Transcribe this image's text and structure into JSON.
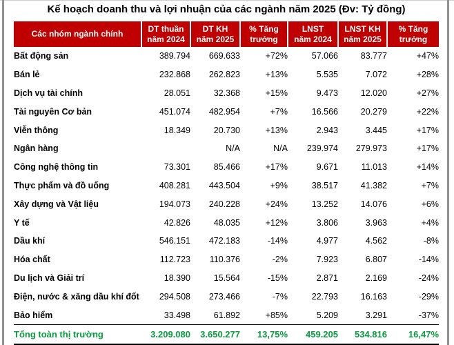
{
  "title": "Kế hoạch doanh thu và lợi nhuận của các ngành năm 2025 (Đv: Tỷ đồng)",
  "colors": {
    "header_bg": "#C00000",
    "header_text": "#FFFFFF",
    "total_text": "#089B3F",
    "body_text": "#000000",
    "frame_line": "#919191"
  },
  "table": {
    "columns": [
      "Các nhóm ngành chính",
      "DT thuần\nnăm 2024",
      "DT KH\nnăm 2025",
      "% Tăng\ntrưởng",
      "LNST\nnăm 2024",
      "LNST KH\nnăm 2025",
      "% Tăng\ntrưởng"
    ],
    "rows": [
      [
        "Bất động sản",
        "389.794",
        "669.633",
        "+72%",
        "57.066",
        "83.777",
        "+47%"
      ],
      [
        "Bán lẻ",
        "232.868",
        "262.823",
        "+13%",
        "5.535",
        "7.072",
        "+28%"
      ],
      [
        "Dịch vụ tài chính",
        "28.051",
        "32.368",
        "+15%",
        "9.473",
        "12.020",
        "+27%"
      ],
      [
        "Tài nguyên Cơ bản",
        "451.074",
        "482.954",
        "+7%",
        "16.566",
        "20.279",
        "+22%"
      ],
      [
        "Viễn thông",
        "18.349",
        "20.730",
        "+13%",
        "2.943",
        "3.445",
        "+17%"
      ],
      [
        "Ngân hàng",
        "",
        "N/A",
        "N/A",
        "239.974",
        "279.973",
        "+17%"
      ],
      [
        "Công nghệ thông tin",
        "73.301",
        "85.466",
        "+17%",
        "9.671",
        "11.013",
        "+14%"
      ],
      [
        "Thực phẩm và đồ uống",
        "408.281",
        "443.504",
        "+9%",
        "38.517",
        "41.382",
        "+7%"
      ],
      [
        "Xây dựng và Vật liệu",
        "194.073",
        "240.228",
        "+24%",
        "13.252",
        "14.076",
        "+6%"
      ],
      [
        "Y tế",
        "42.826",
        "48.035",
        "+12%",
        "3.806",
        "3.963",
        "+4%"
      ],
      [
        "Dầu khí",
        "546.151",
        "472.183",
        "-14%",
        "4.977",
        "4.562",
        "-8%"
      ],
      [
        "Hóa chất",
        "112.723",
        "110.376",
        "-2%",
        "7.923",
        "6.807",
        "-14%"
      ],
      [
        "Du lịch và Giải trí",
        "18.390",
        "15.564",
        "-15%",
        "2.871",
        "2.169",
        "-24%"
      ],
      [
        "Điện, nước & xăng dầu khí đốt",
        "294.508",
        "273.466",
        "-7%",
        "22.793",
        "16.163",
        "-29%"
      ],
      [
        "Bảo hiểm",
        "33.498",
        "61.892",
        "+85%",
        "5.209",
        "3.291",
        "-37%"
      ]
    ],
    "total": [
      "Tổng toàn thị trường",
      "3.209.080",
      "3.650.277",
      "13,75%",
      "459.205",
      "534.816",
      "16,47%"
    ]
  },
  "chart_data": {
    "type": "table",
    "title": "Kế hoạch doanh thu và lợi nhuận của các ngành năm 2025",
    "unit": "Tỷ đồng",
    "categories": [
      "Bất động sản",
      "Bán lẻ",
      "Dịch vụ tài chính",
      "Tài nguyên Cơ bản",
      "Viễn thông",
      "Ngân hàng",
      "Công nghệ thông tin",
      "Thực phẩm và đồ uống",
      "Xây dựng và Vật liệu",
      "Y tế",
      "Dầu khí",
      "Hóa chất",
      "Du lịch và Giải trí",
      "Điện, nước & xăng dầu khí đốt",
      "Bảo hiểm"
    ],
    "series": [
      {
        "name": "DT thuần năm 2024",
        "values": [
          389794,
          232868,
          28051,
          451074,
          18349,
          null,
          73301,
          408281,
          194073,
          42826,
          546151,
          112723,
          18390,
          294508,
          33498
        ]
      },
      {
        "name": "DT KH năm 2025",
        "values": [
          669633,
          262823,
          32368,
          482954,
          20730,
          null,
          85466,
          443504,
          240228,
          48035,
          472183,
          110376,
          15564,
          273466,
          61892
        ]
      },
      {
        "name": "% Tăng trưởng DT",
        "values": [
          72,
          13,
          15,
          7,
          13,
          null,
          17,
          9,
          24,
          12,
          -14,
          -2,
          -15,
          -7,
          85
        ]
      },
      {
        "name": "LNST năm 2024",
        "values": [
          57066,
          5535,
          9473,
          16566,
          2943,
          239974,
          9671,
          38517,
          13252,
          3806,
          4977,
          7923,
          2871,
          22793,
          5209
        ]
      },
      {
        "name": "LNST KH năm 2025",
        "values": [
          83777,
          7072,
          12020,
          20279,
          3445,
          279973,
          11013,
          41382,
          14076,
          3963,
          4562,
          6807,
          2169,
          16163,
          3291
        ]
      },
      {
        "name": "% Tăng trưởng LNST",
        "values": [
          47,
          28,
          27,
          22,
          17,
          17,
          14,
          7,
          6,
          4,
          -8,
          -14,
          -24,
          -29,
          -37
        ]
      }
    ],
    "totals": {
      "label": "Tổng toàn thị trường",
      "dt_2024": 3209080,
      "dt_kh_2025": 3650277,
      "growth_dt_pct": 13.75,
      "lnst_2024": 459205,
      "lnst_kh_2025": 534816,
      "growth_lnst_pct": 16.47
    }
  }
}
